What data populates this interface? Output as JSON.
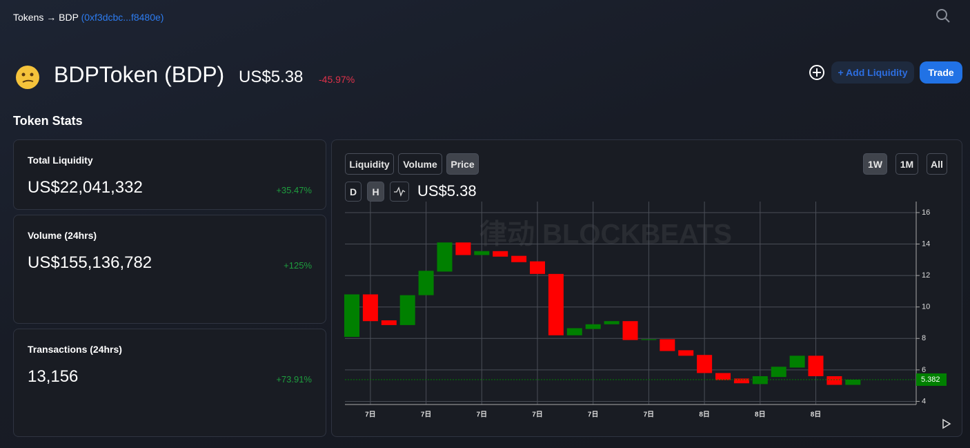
{
  "breadcrumb": {
    "root": "Tokens",
    "arrow": "→",
    "token": "BDP",
    "address": "(0xf3dcbc...f8480e)"
  },
  "token": {
    "name": "BDPToken (BDP)",
    "price": "US$5.38",
    "change": "-45.97%"
  },
  "actions": {
    "add_liquidity": "+ Add Liquidity",
    "trade": "Trade"
  },
  "section_title": "Token Stats",
  "stats": [
    {
      "label": "Total Liquidity",
      "value": "US$22,041,332",
      "change": "+35.47%"
    },
    {
      "label": "Volume (24hrs)",
      "value": "US$155,136,782",
      "change": "+125%"
    },
    {
      "label": "Transactions (24hrs)",
      "value": "13,156",
      "change": "+73.91%"
    }
  ],
  "chart_tabs": [
    "Liquidity",
    "Volume",
    "Price"
  ],
  "range_tabs": [
    "1W",
    "1M",
    "All"
  ],
  "interval_tabs": [
    "D",
    "H"
  ],
  "current_price": "US$5.38",
  "watermark": "律动 BLOCKBEATS",
  "chart_data": {
    "type": "candlestick",
    "categories": [
      null,
      "7日",
      null,
      null,
      "7日",
      null,
      null,
      "7日",
      null,
      null,
      "7日",
      null,
      null,
      "7日",
      null,
      null,
      "7日",
      null,
      null,
      "8日",
      null,
      null,
      "8日",
      null,
      null,
      "8日",
      null,
      null
    ],
    "open": [
      8.1,
      10.8,
      9.15,
      8.85,
      10.75,
      12.25,
      14.1,
      13.3,
      13.55,
      13.25,
      12.9,
      12.1,
      8.2,
      8.6,
      8.9,
      9.1,
      7.9,
      7.95,
      7.25,
      6.95,
      5.8,
      5.45,
      5.1,
      5.55,
      6.15,
      6.9,
      5.6,
      5.05
    ],
    "close": [
      10.8,
      9.1,
      8.85,
      10.75,
      12.3,
      14.1,
      13.3,
      13.55,
      13.2,
      12.85,
      12.1,
      8.2,
      8.65,
      8.9,
      9.1,
      7.9,
      7.95,
      7.2,
      6.9,
      5.8,
      5.35,
      5.15,
      5.6,
      6.2,
      6.9,
      5.6,
      5.05,
      5.38
    ],
    "colors": {
      "up": "#008000",
      "down": "#ff0000"
    },
    "ylim": [
      3.8,
      16.7
    ],
    "yticks": [
      4,
      6,
      8,
      10,
      12,
      14,
      16
    ],
    "grid": true,
    "last_price": 5.382
  }
}
